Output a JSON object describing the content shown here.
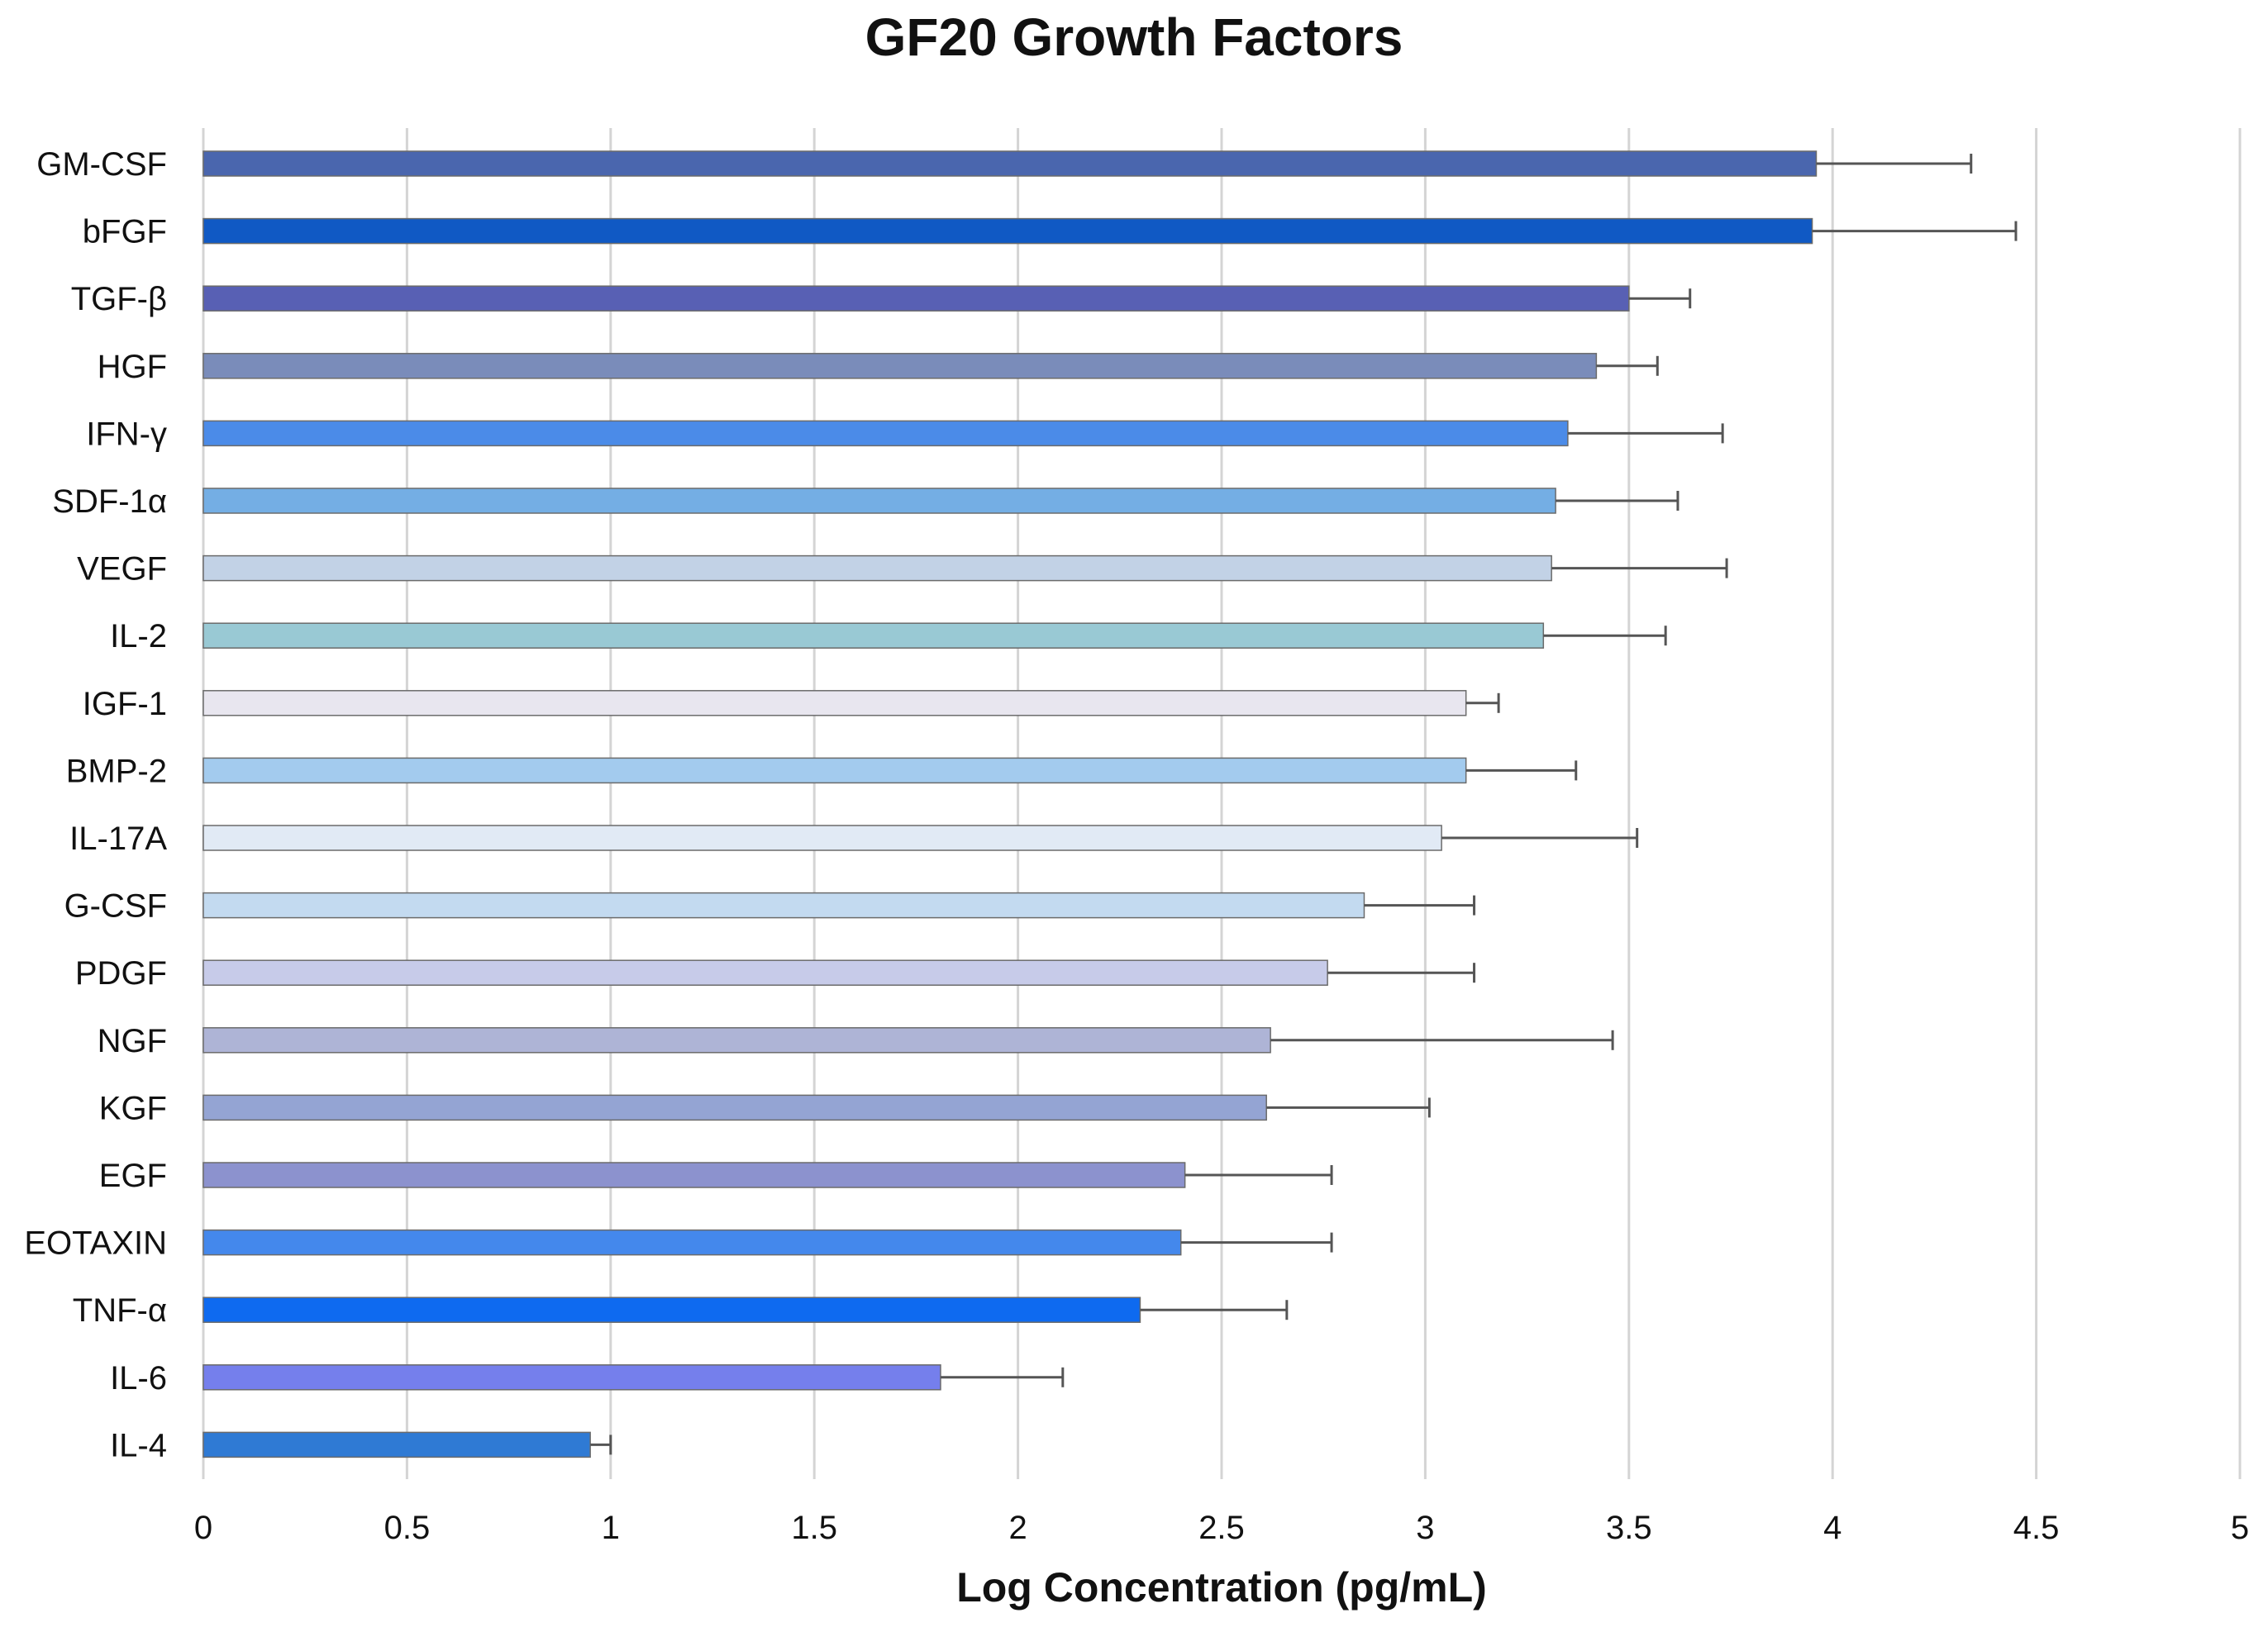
{
  "chart_data": {
    "type": "bar",
    "orientation": "horizontal",
    "title": "GF20 Growth Factors",
    "xlabel": "Log Concentration (pg/mL)",
    "ylabel": "",
    "xlim": [
      0,
      5
    ],
    "xticks": [
      "0",
      "0.5",
      "1",
      "1.5",
      "2",
      "2.5",
      "3",
      "3.5",
      "4",
      "4.5",
      "5"
    ],
    "grid": "vertical",
    "error_bars": true,
    "categories": [
      "GM-CSF",
      "bFGF",
      "TGF-β",
      "HGF",
      "IFN-γ",
      "SDF-1α",
      "VEGF",
      "IL-2",
      "IGF-1",
      "BMP-2",
      "IL-17A",
      "G-CSF",
      "PDGF",
      "NGF",
      "KGF",
      "EGF",
      "EOTAXIN",
      "TNF-α",
      "IL-6",
      "IL-4"
    ],
    "values": [
      3.96,
      3.95,
      3.5,
      3.42,
      3.35,
      3.32,
      3.31,
      3.29,
      3.1,
      3.1,
      3.04,
      2.85,
      2.76,
      2.62,
      2.61,
      2.41,
      2.4,
      2.3,
      1.81,
      0.95
    ],
    "errors": [
      0.38,
      0.5,
      0.15,
      0.15,
      0.38,
      0.3,
      0.43,
      0.3,
      0.08,
      0.27,
      0.48,
      0.27,
      0.36,
      0.84,
      0.4,
      0.36,
      0.37,
      0.36,
      0.3,
      0.05
    ],
    "colors": [
      "#4a66ae",
      "#1059c4",
      "#5860b4",
      "#7a8cba",
      "#4b8be8",
      "#74aee4",
      "#c2d2e6",
      "#99c9d4",
      "#e8e6ef",
      "#a3cbee",
      "#e1eaf5",
      "#c3daf0",
      "#c7cbe9",
      "#aeb4d6",
      "#94a4d3",
      "#8c92ce",
      "#4488ec",
      "#0e6af0",
      "#757fec",
      "#2f7ad4"
    ]
  }
}
